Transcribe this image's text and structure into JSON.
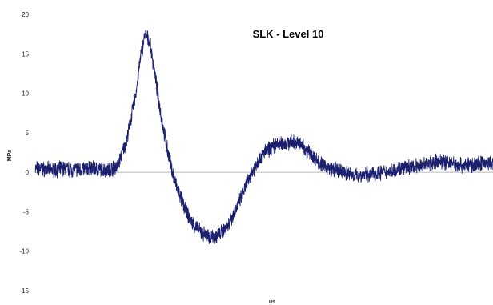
{
  "chart_data": {
    "type": "line",
    "title": "SLK - Level 10",
    "xlabel": "us",
    "ylabel": "MPa",
    "ylim": [
      -15,
      20
    ],
    "yticks": [
      -15,
      -10,
      -5,
      0,
      5,
      10,
      15,
      20
    ],
    "grid": false,
    "color": "#1a1f6e",
    "series": [
      {
        "x": [
          0,
          2,
          4,
          6,
          8,
          10,
          12,
          14,
          16,
          18,
          20,
          22,
          23,
          24,
          25,
          26,
          27,
          28,
          29,
          30,
          31,
          32,
          33,
          34,
          36,
          38,
          40,
          42,
          44,
          46,
          48,
          50,
          52,
          54,
          56,
          58,
          60,
          62,
          64,
          66,
          68,
          70,
          72,
          74,
          76,
          78,
          80,
          82,
          84,
          86,
          88,
          90,
          92,
          94,
          96,
          98,
          100
        ],
        "y": [
          0.5,
          0.4,
          0.3,
          0.5,
          0.3,
          0.4,
          0.5,
          0.4,
          0.3,
          0.8,
          4.0,
          10.0,
          14.5,
          17.5,
          16.5,
          13.0,
          9.0,
          5.5,
          2.5,
          0.0,
          -2.0,
          -3.5,
          -5.0,
          -6.2,
          -7.5,
          -8.2,
          -8.0,
          -6.8,
          -4.5,
          -1.8,
          0.8,
          2.5,
          3.3,
          3.6,
          3.8,
          3.5,
          2.5,
          1.2,
          0.5,
          0.2,
          -0.1,
          -0.4,
          -0.3,
          -0.2,
          0.0,
          0.2,
          0.5,
          0.6,
          0.8,
          1.1,
          1.4,
          1.3,
          1.0,
          0.9,
          1.0,
          1.2,
          1.0
        ]
      }
    ]
  }
}
